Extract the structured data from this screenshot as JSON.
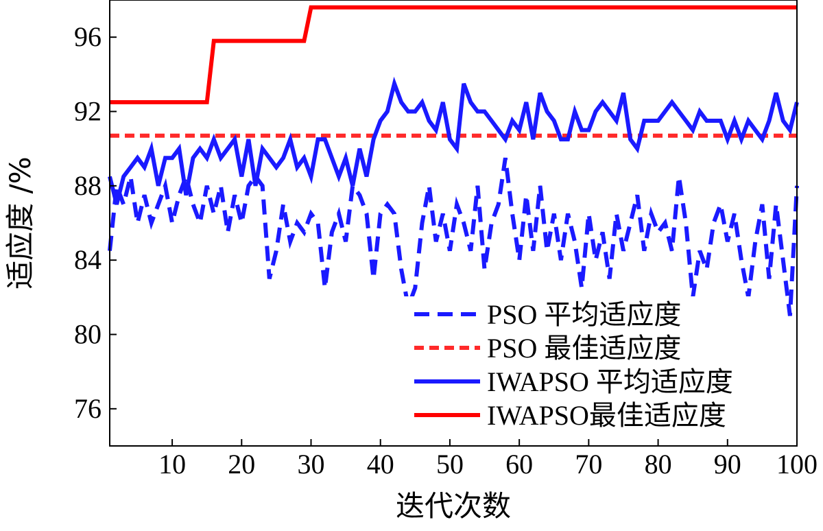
{
  "chart_data": {
    "type": "line",
    "xlabel": "迭代次数",
    "ylabel": "适应度 /%",
    "xlim": [
      1,
      100
    ],
    "ylim": [
      74,
      98
    ],
    "xticks": [
      10,
      20,
      30,
      40,
      50,
      60,
      70,
      80,
      90,
      100
    ],
    "yticks": [
      76,
      80,
      84,
      88,
      92,
      96
    ],
    "grid": false,
    "legend_position": "bottom-right",
    "series": [
      {
        "name": "PSO 平均适应度",
        "color": "#1a1aff",
        "style": "dashed",
        "x": [
          1,
          2,
          3,
          4,
          5,
          6,
          7,
          8,
          9,
          10,
          11,
          12,
          13,
          14,
          15,
          16,
          17,
          18,
          19,
          20,
          21,
          22,
          23,
          24,
          25,
          26,
          27,
          28,
          29,
          30,
          31,
          32,
          33,
          34,
          35,
          36,
          37,
          38,
          39,
          40,
          41,
          42,
          43,
          44,
          45,
          46,
          47,
          48,
          49,
          50,
          51,
          52,
          53,
          54,
          55,
          56,
          57,
          58,
          59,
          60,
          61,
          62,
          63,
          64,
          65,
          66,
          67,
          68,
          69,
          70,
          71,
          72,
          73,
          74,
          75,
          76,
          77,
          78,
          79,
          80,
          81,
          82,
          83,
          84,
          85,
          86,
          87,
          88,
          89,
          90,
          91,
          92,
          93,
          94,
          95,
          96,
          97,
          98,
          99,
          100
        ],
        "values": [
          84.5,
          88.0,
          87.0,
          88.5,
          86.0,
          87.5,
          86.0,
          87.0,
          88.0,
          86.0,
          87.5,
          88.5,
          87.0,
          86.0,
          88.0,
          86.5,
          88.0,
          85.5,
          87.5,
          86.0,
          88.0,
          88.5,
          88.0,
          83.0,
          84.5,
          87.0,
          85.0,
          86.0,
          85.5,
          86.5,
          86.0,
          82.5,
          85.5,
          86.5,
          85.0,
          88.0,
          87.5,
          86.5,
          83.0,
          86.5,
          87.0,
          86.5,
          83.5,
          81.5,
          82.5,
          86.0,
          88.0,
          85.0,
          86.5,
          84.5,
          87.0,
          86.0,
          84.5,
          88.0,
          83.5,
          86.0,
          87.0,
          89.5,
          86.5,
          84.0,
          87.5,
          84.5,
          88.0,
          84.5,
          86.5,
          84.0,
          86.5,
          85.0,
          82.5,
          86.5,
          84.0,
          85.5,
          83.0,
          86.5,
          84.5,
          86.0,
          87.5,
          84.5,
          86.5,
          85.5,
          86.0,
          84.5,
          88.5,
          86.0,
          82.0,
          84.5,
          83.5,
          86.0,
          87.0,
          85.0,
          86.5,
          84.0,
          82.0,
          85.0,
          87.0,
          83.0,
          87.0,
          84.0,
          81.0,
          88.0
        ]
      },
      {
        "name": "PSO 最佳适应度",
        "color": "#ff2a2a",
        "style": "dashed",
        "x": [
          1,
          100
        ],
        "values": [
          90.7,
          90.7
        ]
      },
      {
        "name": "IWAPSO 平均适应度",
        "color": "#1a1aff",
        "style": "solid",
        "x": [
          1,
          2,
          3,
          4,
          5,
          6,
          7,
          8,
          9,
          10,
          11,
          12,
          13,
          14,
          15,
          16,
          17,
          18,
          19,
          20,
          21,
          22,
          23,
          24,
          25,
          26,
          27,
          28,
          29,
          30,
          31,
          32,
          33,
          34,
          35,
          36,
          37,
          38,
          39,
          40,
          41,
          42,
          43,
          44,
          45,
          46,
          47,
          48,
          49,
          50,
          51,
          52,
          53,
          54,
          55,
          56,
          57,
          58,
          59,
          60,
          61,
          62,
          63,
          64,
          65,
          66,
          67,
          68,
          69,
          70,
          71,
          72,
          73,
          74,
          75,
          76,
          77,
          78,
          79,
          80,
          81,
          82,
          83,
          84,
          85,
          86,
          87,
          88,
          89,
          90,
          91,
          92,
          93,
          94,
          95,
          96,
          97,
          98,
          99,
          100
        ],
        "values": [
          88.5,
          87.0,
          88.5,
          89.0,
          89.5,
          89.0,
          90.0,
          88.0,
          89.5,
          89.5,
          90.0,
          87.5,
          89.5,
          90.0,
          89.5,
          90.5,
          89.5,
          90.0,
          90.5,
          88.5,
          90.5,
          88.0,
          90.0,
          89.5,
          89.0,
          89.5,
          90.5,
          89.0,
          89.5,
          88.5,
          90.5,
          90.5,
          89.5,
          88.5,
          89.5,
          88.0,
          90.0,
          88.5,
          90.5,
          91.5,
          92.0,
          93.5,
          92.5,
          92.0,
          92.0,
          92.5,
          91.5,
          91.0,
          92.5,
          90.5,
          90.0,
          93.5,
          92.5,
          92.0,
          92.0,
          91.5,
          91.0,
          90.5,
          91.5,
          91.0,
          92.5,
          90.5,
          93.0,
          92.0,
          91.5,
          90.5,
          90.5,
          92.0,
          91.0,
          91.0,
          92.0,
          92.5,
          92.0,
          91.5,
          93.0,
          90.5,
          90.0,
          91.5,
          91.5,
          91.5,
          92.0,
          92.5,
          92.0,
          91.5,
          91.0,
          92.0,
          91.5,
          91.5,
          91.5,
          90.5,
          91.5,
          90.5,
          91.5,
          91.0,
          90.5,
          91.5,
          93.0,
          91.5,
          91.0,
          92.5
        ]
      },
      {
        "name": "IWAPSO最佳适应度",
        "color": "#ff0000",
        "style": "solid",
        "x": [
          1,
          15,
          16,
          29,
          30,
          100
        ],
        "values": [
          92.5,
          92.5,
          95.8,
          95.8,
          97.6,
          97.6
        ]
      }
    ]
  }
}
